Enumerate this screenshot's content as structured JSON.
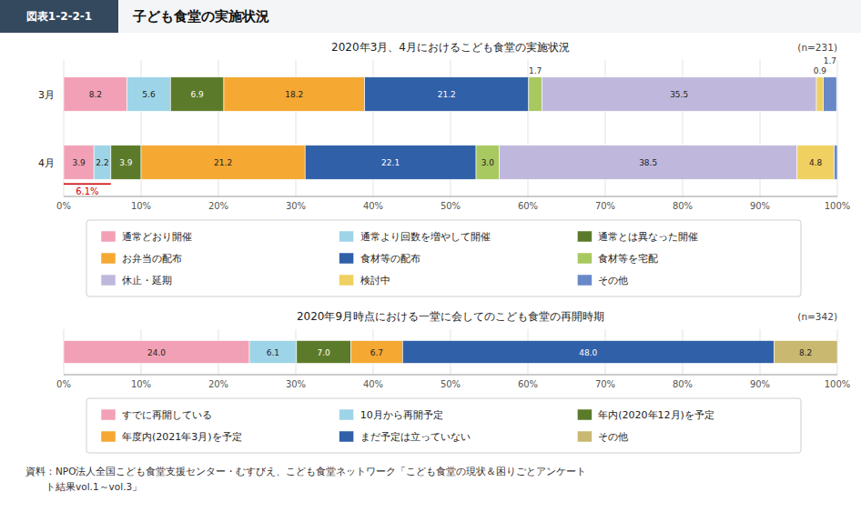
{
  "title": "子ども食堂の実施状況",
  "subtitle": "図表1-2-2-1",
  "source": [
    "資料：NPO法人全国こども食堂支援センター・むすびえ、こども食堂ネットワーク「こども食堂の現状＆困りごとアンケート",
    "　　ト結果vol.1～vol.3」"
  ],
  "chart_data": [
    {
      "type": "bar",
      "orientation": "horizontal",
      "stacked": true,
      "data_labels": true,
      "grid": true,
      "legend": "bottom",
      "title": "2020年3月、4月におけるこども食堂の実施状況",
      "subtitle": "(n=231)",
      "categories": [
        "3月",
        "4月"
      ],
      "series": [
        {
          "name": "通常どおり開催",
          "color": "#F2A0B5",
          "values": [
            8.2,
            3.9
          ],
          "value_labels": [
            "8.2",
            "3.9"
          ]
        },
        {
          "name": "通常より回数を増やして開催",
          "color": "#9ED4E8",
          "values": [
            5.6,
            2.2
          ],
          "value_labels": [
            "5.6",
            "2.2"
          ]
        },
        {
          "name": "通常とは異なった開催",
          "color": "#5B7B2A",
          "values": [
            6.9,
            3.9
          ],
          "value_labels": [
            "6.9",
            "3.9"
          ]
        },
        {
          "name": "お弁当の配布",
          "color": "#F5A832",
          "values": [
            18.2,
            21.2
          ],
          "value_labels": [
            "18.2",
            "21.2"
          ]
        },
        {
          "name": "食材等の配布",
          "color": "#3060A8",
          "values": [
            21.2,
            22.1
          ],
          "value_labels": [
            "21.2",
            "22.1"
          ]
        },
        {
          "name": "食材等を宅配",
          "color": "#A8C860",
          "values": [
            1.7,
            3.0
          ],
          "value_labels": [
            "1.7",
            "3.0"
          ]
        },
        {
          "name": "休止・延期",
          "color": "#C0B8DC",
          "values": [
            35.5,
            38.5
          ],
          "value_labels": [
            "35.5",
            "38.5"
          ]
        },
        {
          "name": "検討中",
          "color": "#F0D060",
          "values": [
            0.9,
            4.8
          ],
          "value_labels": [
            "0.9",
            "4.8"
          ]
        },
        {
          "name": "その他",
          "color": "#6888C8",
          "values": [
            1.7,
            0.4
          ],
          "value_labels": [
            "1.7",
            null
          ]
        }
      ],
      "xlim": [
        0,
        100
      ],
      "xticks": [
        {
          "value": 0,
          "label": "0%"
        },
        {
          "value": 10,
          "label": "10%"
        },
        {
          "value": 20,
          "label": "20%"
        },
        {
          "value": 30,
          "label": "30%"
        },
        {
          "value": 40,
          "label": "40%"
        },
        {
          "value": 50,
          "label": "50%"
        },
        {
          "value": 60,
          "label": "60%"
        },
        {
          "value": 70,
          "label": "70%"
        },
        {
          "value": 80,
          "label": "80%"
        },
        {
          "value": 90,
          "label": "90%"
        },
        {
          "value": 100,
          "label": "100%"
        }
      ],
      "annotations": [
        {
          "text": "6.1%",
          "value": 6.1,
          "color": "#CC0000"
        }
      ]
    },
    {
      "type": "bar",
      "orientation": "horizontal",
      "stacked": true,
      "data_labels": true,
      "grid": true,
      "legend": "bottom",
      "title": "2020年9月時点における一堂に会してのこども食堂の再開時期",
      "subtitle": "(n=342)",
      "categories": [
        null
      ],
      "series": [
        {
          "name": "すでに再開している",
          "color": "#F2A0B5",
          "values": [
            24.0
          ],
          "value_labels": [
            "24.0"
          ]
        },
        {
          "name": "10月から再開予定",
          "color": "#9ED4E8",
          "values": [
            6.1
          ],
          "value_labels": [
            "6.1"
          ]
        },
        {
          "name": "年内(2020年12月)を予定",
          "color": "#5B7B2A",
          "values": [
            7.0
          ],
          "value_labels": [
            "7.0"
          ]
        },
        {
          "name": "年度内(2021年3月)を予定",
          "color": "#F5A832",
          "values": [
            6.7
          ],
          "value_labels": [
            "6.7"
          ]
        },
        {
          "name": "まだ予定は立っていない",
          "color": "#3060A8",
          "values": [
            48.0
          ],
          "value_labels": [
            "48.0"
          ]
        },
        {
          "name": "その他",
          "color": "#C8B870",
          "values": [
            8.2
          ],
          "value_labels": [
            "8.2"
          ]
        }
      ],
      "xlim": [
        0,
        100
      ],
      "xticks": [
        {
          "value": 0,
          "label": "0%"
        },
        {
          "value": 10,
          "label": "10%"
        },
        {
          "value": 20,
          "label": "20%"
        },
        {
          "value": 30,
          "label": "30%"
        },
        {
          "value": 40,
          "label": "40%"
        },
        {
          "value": 50,
          "label": "50%"
        },
        {
          "value": 60,
          "label": "60%"
        },
        {
          "value": 70,
          "label": "70%"
        },
        {
          "value": 80,
          "label": "80%"
        },
        {
          "value": 90,
          "label": "90%"
        },
        {
          "value": 100,
          "label": "100%"
        }
      ]
    }
  ]
}
